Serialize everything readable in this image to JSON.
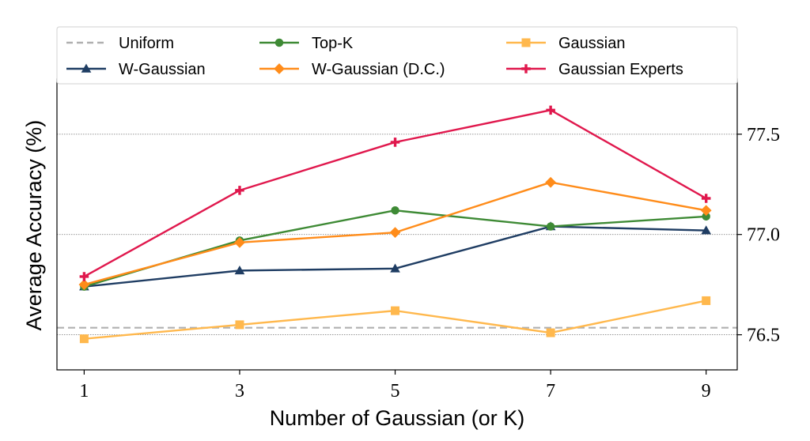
{
  "chart_data": {
    "type": "line",
    "xlabel": "Number of Gaussian (or K)",
    "ylabel": "Average Accuracy (%)",
    "x": [
      1,
      3,
      5,
      7,
      9
    ],
    "x_ticks": [
      "1",
      "3",
      "5",
      "7",
      "9"
    ],
    "xlim": [
      0.65,
      9.4
    ],
    "ylim": [
      76.325,
      77.775
    ],
    "y_ticks": [
      76.5,
      77.0,
      77.5
    ],
    "y_tick_labels": [
      "76.5",
      "77.0",
      "77.5"
    ],
    "y_axis_side": "right",
    "grid": "horizontal-dotted",
    "legend_placement": "top",
    "reference_line": {
      "name": "Uniform",
      "value": 76.535,
      "color": "#b0b0b0",
      "style": "dashed"
    },
    "series": [
      {
        "name": "W-Gaussian",
        "color": "#1f3d63",
        "marker": "triangle",
        "values": [
          76.74,
          76.82,
          76.83,
          77.04,
          77.02
        ]
      },
      {
        "name": "Top-K",
        "color": "#3e8a35",
        "marker": "circle",
        "values": [
          76.74,
          76.97,
          77.12,
          77.04,
          77.09
        ]
      },
      {
        "name": "W-Gaussian (D.C.)",
        "color": "#ff8c1a",
        "marker": "diamond",
        "values": [
          76.75,
          76.96,
          77.01,
          77.26,
          77.12
        ]
      },
      {
        "name": "Gaussian",
        "color": "#ffb84d",
        "marker": "square",
        "values": [
          76.48,
          76.55,
          76.62,
          76.51,
          76.67
        ]
      },
      {
        "name": "Gaussian Experts",
        "color": "#e0184d",
        "marker": "plus",
        "values": [
          76.79,
          77.22,
          77.46,
          77.62,
          77.18
        ]
      }
    ],
    "legend": {
      "entries": [
        "Uniform",
        "Top-K",
        "Gaussian",
        "W-Gaussian",
        "W-Gaussian (D.C.)",
        "Gaussian Experts"
      ]
    }
  }
}
